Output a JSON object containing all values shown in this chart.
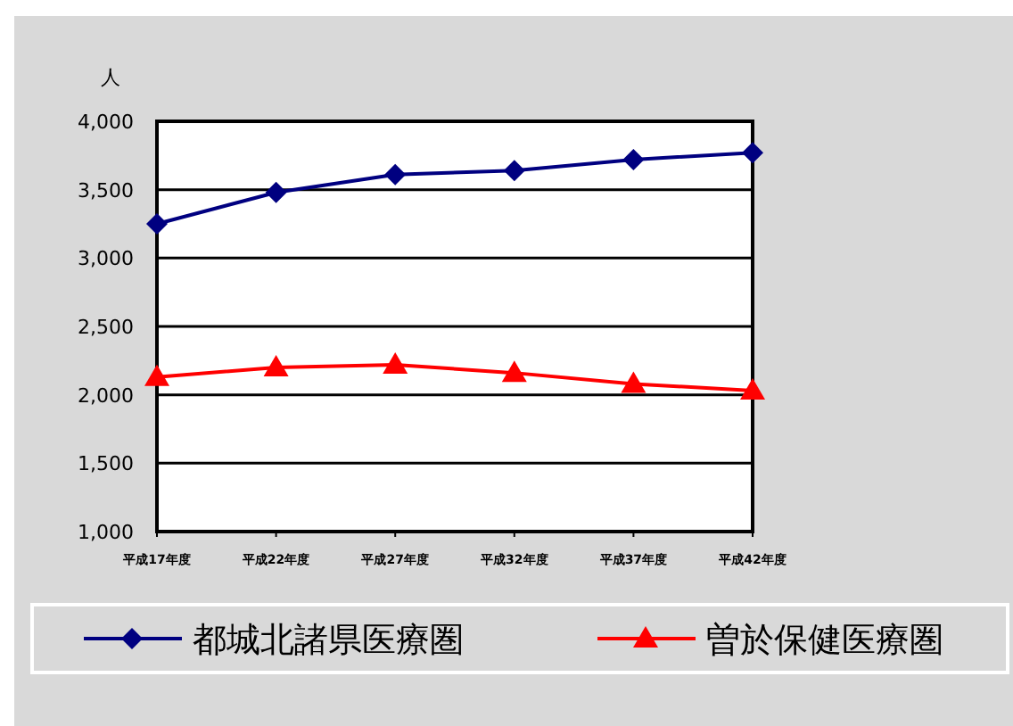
{
  "chart_data": {
    "type": "line",
    "ylabel": "人",
    "categories": [
      "平成17年度",
      "平成22年度",
      "平成27年度",
      "平成32年度",
      "平成37年度",
      "平成42年度"
    ],
    "series": [
      {
        "name": "都城北諸県医療圏",
        "color": "#000080",
        "marker": "diamond",
        "values": [
          3250,
          3480,
          3610,
          3640,
          3720,
          3770
        ]
      },
      {
        "name": "曽於保健医療圏",
        "color": "#ff0000",
        "marker": "triangle",
        "values": [
          2130,
          2200,
          2220,
          2160,
          2080,
          2030
        ]
      }
    ],
    "ylim": [
      1000,
      4000
    ],
    "yticks": [
      {
        "value": 1000,
        "label": "1,000"
      },
      {
        "value": 1500,
        "label": "1,500"
      },
      {
        "value": 2000,
        "label": "2,000"
      },
      {
        "value": 2500,
        "label": "2,500"
      },
      {
        "value": 3000,
        "label": "3,000"
      },
      {
        "value": 3500,
        "label": "3,500"
      },
      {
        "value": 4000,
        "label": "4,000"
      }
    ],
    "grid": "y",
    "legend": "bottom",
    "line_style": "solid"
  }
}
